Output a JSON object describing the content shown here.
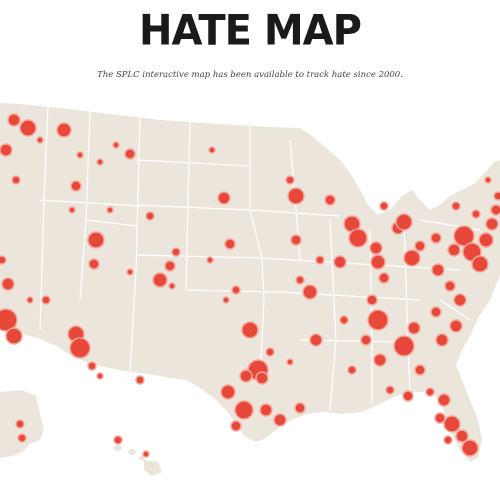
{
  "header": {
    "title": "HATE MAP",
    "subtitle": "The SPLC interactive map has been available to track hate since 2000."
  },
  "colors": {
    "land": "#ece5dc",
    "border": "#ffffff",
    "marker": "#e8483a",
    "marker_ring": "#f5a79c",
    "background": "#ffffff"
  },
  "map": {
    "region": "United States",
    "marker_icon": "circle-marker-icon"
  }
}
